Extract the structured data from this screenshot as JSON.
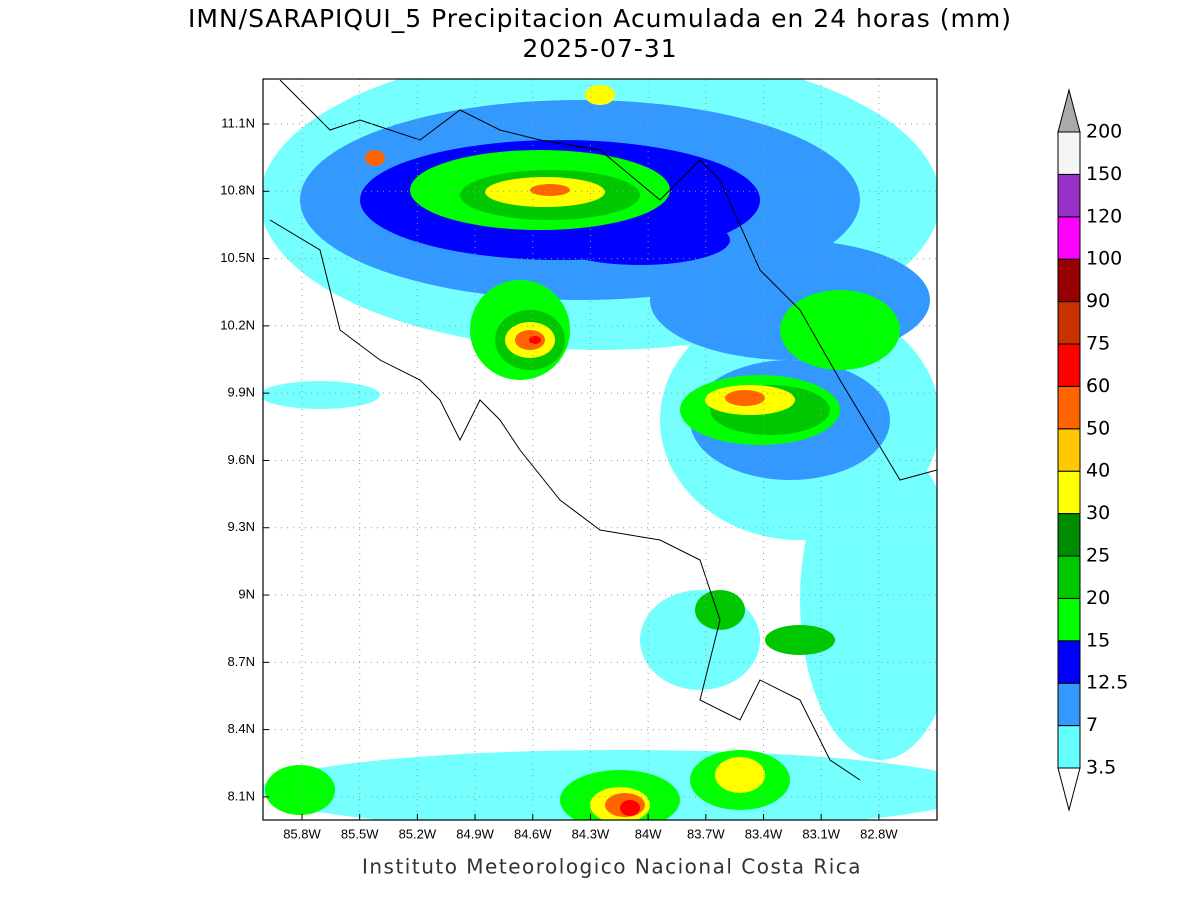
{
  "header": {
    "title": "IMN/SARAPIQUI_5 Precipitacion Acumulada en 24 horas (mm)",
    "subtitle": "2025-07-31"
  },
  "map": {
    "lon_ticks": [
      {
        "value": -85.8,
        "label": "85.8W"
      },
      {
        "value": -85.5,
        "label": "85.5W"
      },
      {
        "value": -85.2,
        "label": "85.2W"
      },
      {
        "value": -84.9,
        "label": "84.9W"
      },
      {
        "value": -84.6,
        "label": "84.6W"
      },
      {
        "value": -84.3,
        "label": "84.3W"
      },
      {
        "value": -84.0,
        "label": "84W"
      },
      {
        "value": -83.7,
        "label": "83.7W"
      },
      {
        "value": -83.4,
        "label": "83.4W"
      },
      {
        "value": -83.1,
        "label": "83.1W"
      },
      {
        "value": -82.8,
        "label": "82.8W"
      }
    ],
    "lat_ticks": [
      {
        "value": 11.1,
        "label": "11.1N"
      },
      {
        "value": 10.8,
        "label": "10.8N"
      },
      {
        "value": 10.5,
        "label": "10.5N"
      },
      {
        "value": 10.2,
        "label": "10.2N"
      },
      {
        "value": 9.9,
        "label": "9.9N"
      },
      {
        "value": 9.6,
        "label": "9.6N"
      },
      {
        "value": 9.3,
        "label": "9.3N"
      },
      {
        "value": 9.0,
        "label": "9N"
      },
      {
        "value": 8.7,
        "label": "8.7N"
      },
      {
        "value": 8.4,
        "label": "8.4N"
      },
      {
        "value": 8.1,
        "label": "8.1N"
      }
    ]
  },
  "colorbar": {
    "levels": [
      3.5,
      7,
      12.5,
      15,
      20,
      25,
      30,
      40,
      50,
      60,
      75,
      90,
      100,
      120,
      150,
      200
    ],
    "colors": [
      "#66ffff",
      "#3399ff",
      "#0000ff",
      "#00ff00",
      "#00c800",
      "#008c00",
      "#ffff00",
      "#ffc800",
      "#ff6400",
      "#ff0000",
      "#c83200",
      "#960000",
      "#ff00ff",
      "#9632c8",
      "#f5f5f5"
    ],
    "under_color": "#ffffff",
    "over_color": "#aaaaaa"
  },
  "footer": {
    "credit": "Instituto Meteorologico Nacional Costa Rica"
  }
}
